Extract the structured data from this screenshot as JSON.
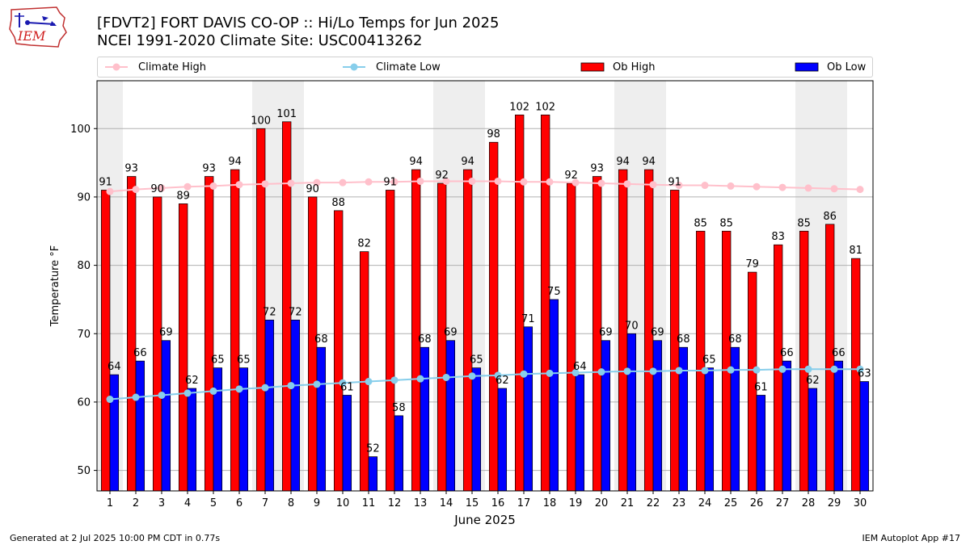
{
  "header": {
    "title_line1": "[FDVT2] FORT DAVIS CO-OP :: Hi/Lo Temps for Jun 2025",
    "title_line2": "NCEI 1991-2020 Climate Site: USC00413262",
    "logo_text": "IEM"
  },
  "legend": {
    "climate_high": "Climate High",
    "climate_low": "Climate Low",
    "ob_high": "Ob High",
    "ob_low": "Ob Low"
  },
  "footer": {
    "generated": "Generated at 2 Jul 2025 10:00 PM CDT in 0.77s",
    "app": "IEM Autoplot App #17"
  },
  "colors": {
    "ob_high": "#ff0000",
    "ob_low": "#0000ff",
    "climate_high": "#ffc0cb",
    "climate_low": "#87ceeb",
    "weekend_shade": "#eeeeee",
    "grid": "#b0b0b0"
  },
  "chart_data": {
    "type": "bar",
    "xlabel": "June 2025",
    "ylabel": "Temperature °F",
    "ylim": [
      47,
      107
    ],
    "yticks": [
      50,
      60,
      70,
      80,
      90,
      100
    ],
    "grid": "horizontal",
    "legend_placement": "top",
    "categories": [
      "1",
      "2",
      "3",
      "4",
      "5",
      "6",
      "7",
      "8",
      "9",
      "10",
      "11",
      "12",
      "13",
      "14",
      "15",
      "16",
      "17",
      "18",
      "19",
      "20",
      "21",
      "22",
      "23",
      "24",
      "25",
      "26",
      "27",
      "28",
      "29",
      "30"
    ],
    "shaded_days": [
      1,
      7,
      8,
      14,
      15,
      21,
      22,
      28,
      29
    ],
    "series": [
      {
        "name": "Ob High",
        "kind": "bar",
        "values": [
          91,
          93,
          90,
          89,
          93,
          94,
          100,
          101,
          90,
          88,
          82,
          91,
          94,
          92,
          94,
          98,
          102,
          102,
          92,
          93,
          94,
          94,
          91,
          85,
          85,
          79,
          83,
          85,
          86,
          81
        ]
      },
      {
        "name": "Ob Low",
        "kind": "bar",
        "values": [
          64,
          66,
          69,
          62,
          65,
          65,
          72,
          72,
          68,
          61,
          52,
          58,
          68,
          69,
          65,
          62,
          71,
          75,
          64,
          69,
          70,
          69,
          68,
          65,
          68,
          61,
          66,
          62,
          66,
          63
        ]
      },
      {
        "name": "Climate High",
        "kind": "line",
        "values": [
          90.8,
          91.1,
          91.3,
          91.5,
          91.6,
          91.8,
          91.9,
          92.0,
          92.1,
          92.1,
          92.2,
          92.2,
          92.3,
          92.3,
          92.3,
          92.3,
          92.2,
          92.2,
          92.1,
          92.0,
          91.9,
          91.8,
          91.7,
          91.7,
          91.6,
          91.5,
          91.4,
          91.3,
          91.2,
          91.1
        ]
      },
      {
        "name": "Climate Low",
        "kind": "line",
        "values": [
          60.4,
          60.7,
          61.0,
          61.3,
          61.6,
          61.9,
          62.1,
          62.4,
          62.6,
          62.8,
          63.0,
          63.2,
          63.4,
          63.6,
          63.8,
          63.9,
          64.1,
          64.2,
          64.3,
          64.4,
          64.5,
          64.5,
          64.6,
          64.6,
          64.7,
          64.7,
          64.8,
          64.8,
          64.8,
          64.8
        ]
      }
    ]
  }
}
